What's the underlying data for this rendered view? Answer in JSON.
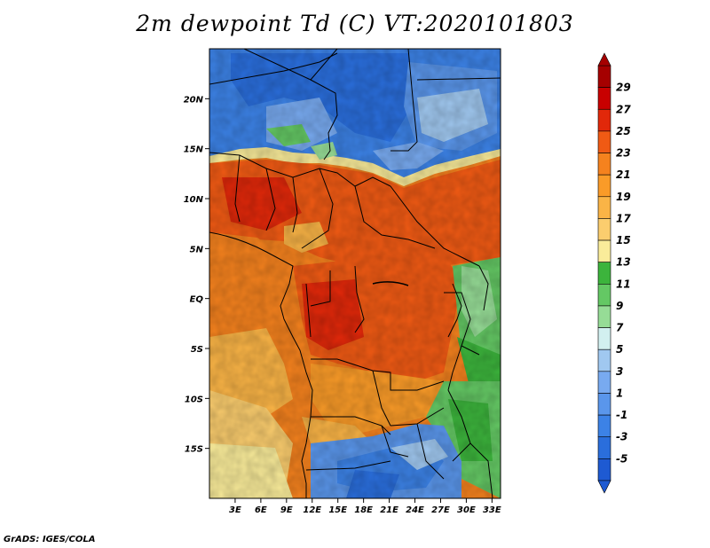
{
  "title": "2m dewpoint Td (C) VT:2020101803",
  "credit": "GrADS: IGES/COLA",
  "map": {
    "variable": "2m dewpoint",
    "units": "C",
    "valid_time": "2020101803",
    "lon_range": [
      0,
      34
    ],
    "lat_range": [
      -20,
      25
    ],
    "y_ticks": [
      "20N",
      "15N",
      "10N",
      "5N",
      "EQ",
      "5S",
      "10S",
      "15S"
    ],
    "y_tick_values": [
      20,
      15,
      10,
      5,
      0,
      -5,
      -10,
      -15
    ],
    "x_ticks": [
      "3E",
      "6E",
      "9E",
      "12E",
      "15E",
      "18E",
      "21E",
      "24E",
      "27E",
      "30E",
      "33E"
    ],
    "x_tick_values": [
      3,
      6,
      9,
      12,
      15,
      18,
      21,
      24,
      27,
      30,
      33
    ]
  },
  "colorbar": {
    "labels": [
      "29",
      "27",
      "25",
      "23",
      "21",
      "19",
      "17",
      "15",
      "13",
      "11",
      "9",
      "7",
      "5",
      "3",
      "1",
      "-1",
      "-3",
      "-5"
    ],
    "colors": [
      "#a50000",
      "#c80000",
      "#e1280a",
      "#f05a14",
      "#f5821e",
      "#fa9b28",
      "#fab446",
      "#fbcd6e",
      "#faec9a",
      "#3cb43c",
      "#64c864",
      "#96dc96",
      "#d2f0f0",
      "#a0c8f0",
      "#78aaf0",
      "#5a96eb",
      "#3c82e6",
      "#2a6edc",
      "#1e5ad2"
    ],
    "under_color": "#1e5ad2",
    "over_color": "#a50000"
  }
}
